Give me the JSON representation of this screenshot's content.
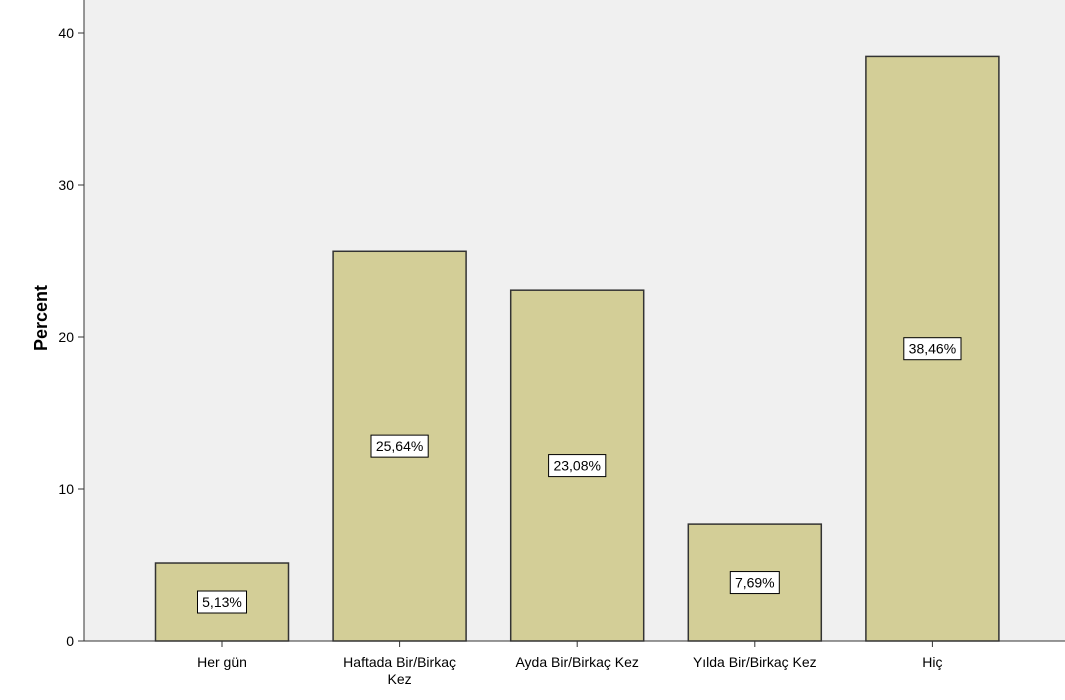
{
  "chart_data": {
    "type": "bar",
    "title": "",
    "xlabel": "",
    "ylabel": "Percent",
    "ylim": [
      0,
      42
    ],
    "yticks": [
      0,
      10,
      20,
      30,
      40
    ],
    "grid": false,
    "legend": "none",
    "categories": [
      "Her gün",
      "Haftada Bir/Birkaç Kez",
      "Ayda Bir/Birkaç Kez",
      "Yılda Bir/Birkaç Kez",
      "Hiç"
    ],
    "category_lines": [
      [
        "Her gün"
      ],
      [
        "Haftada Bir/Birkaç",
        "Kez"
      ],
      [
        "Ayda Bir/Birkaç Kez"
      ],
      [
        "Yılda Bir/Birkaç Kez"
      ],
      [
        "Hiç"
      ]
    ],
    "values": [
      5.13,
      25.64,
      23.08,
      7.69,
      38.46
    ],
    "data_labels": [
      "5,13%",
      "25,64%",
      "23,08%",
      "7,69%",
      "38,46%"
    ]
  },
  "colors": {
    "plot_background": "#f0f0f0",
    "bar_fill": "#d3ce97",
    "bar_stroke": "#333333",
    "axis": "#333333",
    "label_box_fill": "#ffffff"
  }
}
